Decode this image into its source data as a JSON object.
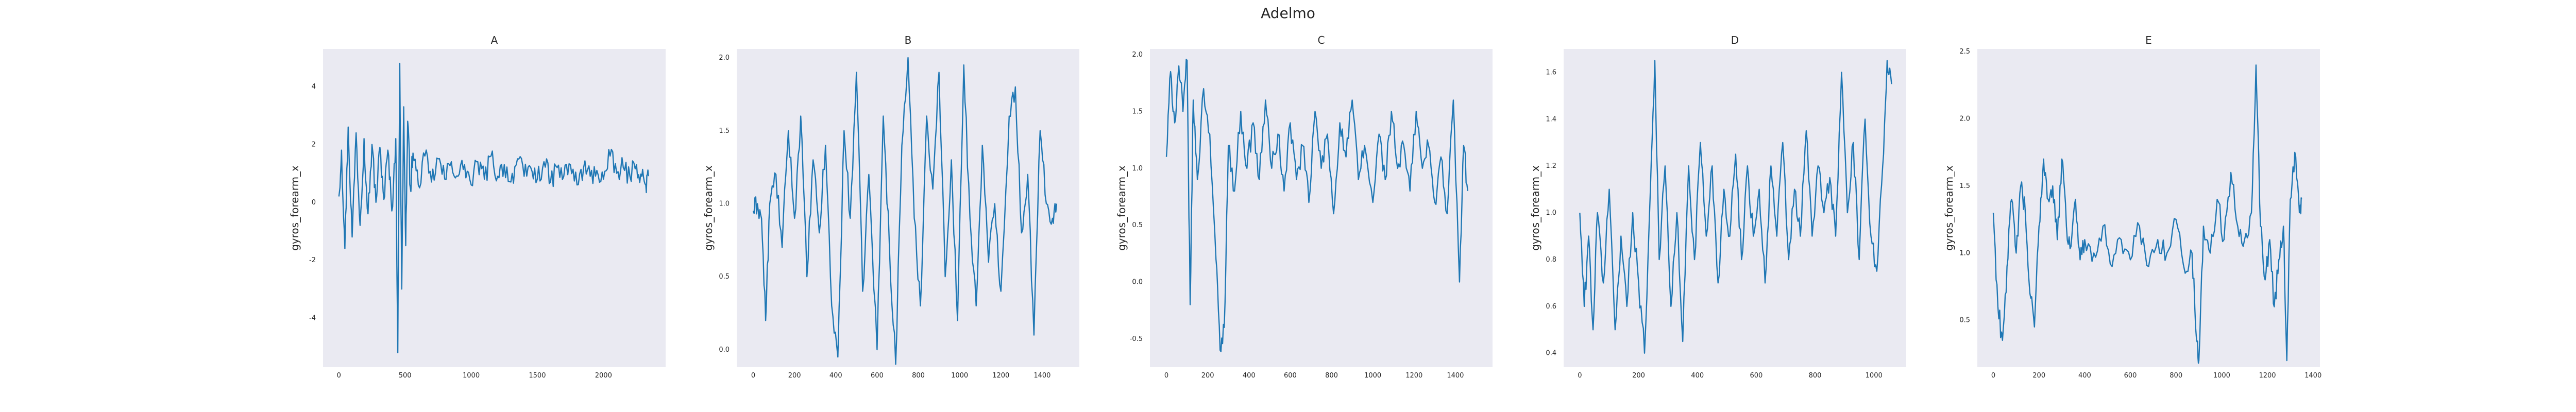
{
  "figure": {
    "title": "Adelmo"
  },
  "style": {
    "background": "#eaeaf2",
    "line_color": "#1f77b4",
    "text_color": "#262626"
  },
  "chart_data": [
    {
      "type": "line",
      "title": "A",
      "xlabel": "",
      "ylabel": "gyros_forearm_x",
      "xlim": [
        -120,
        2470
      ],
      "ylim": [
        -5.7,
        5.3
      ],
      "xticks": [
        0,
        500,
        1000,
        1500,
        2000
      ],
      "yticks": [
        -4,
        -2,
        0,
        2,
        4
      ],
      "grid": false,
      "keypoints": [
        [
          0,
          0.2
        ],
        [
          20,
          1.8
        ],
        [
          45,
          -1.6
        ],
        [
          70,
          2.6
        ],
        [
          100,
          -1.2
        ],
        [
          130,
          2.4
        ],
        [
          160,
          -0.8
        ],
        [
          190,
          2.2
        ],
        [
          220,
          -0.4
        ],
        [
          250,
          2.0
        ],
        [
          280,
          0.0
        ],
        [
          310,
          1.9
        ],
        [
          340,
          0.1
        ],
        [
          370,
          1.8
        ],
        [
          400,
          -0.3
        ],
        [
          430,
          2.2
        ],
        [
          445,
          -5.2
        ],
        [
          460,
          4.8
        ],
        [
          475,
          -3.0
        ],
        [
          490,
          3.3
        ],
        [
          505,
          -1.5
        ],
        [
          520,
          2.8
        ],
        [
          540,
          0.5
        ],
        [
          560,
          1.7
        ],
        [
          600,
          0.6
        ],
        [
          650,
          1.6
        ],
        [
          700,
          0.7
        ],
        [
          750,
          1.5
        ],
        [
          800,
          0.8
        ],
        [
          850,
          1.4
        ],
        [
          900,
          0.9
        ],
        [
          950,
          1.3
        ],
        [
          1000,
          0.6
        ],
        [
          1050,
          1.4
        ],
        [
          1100,
          0.8
        ],
        [
          1150,
          1.6
        ],
        [
          1200,
          0.9
        ],
        [
          1250,
          1.3
        ],
        [
          1300,
          0.7
        ],
        [
          1350,
          1.5
        ],
        [
          1400,
          0.9
        ],
        [
          1450,
          1.2
        ],
        [
          1500,
          0.8
        ],
        [
          1550,
          1.4
        ],
        [
          1600,
          0.7
        ],
        [
          1650,
          1.2
        ],
        [
          1700,
          0.9
        ],
        [
          1750,
          1.3
        ],
        [
          1800,
          0.6
        ],
        [
          1850,
          1.2
        ],
        [
          1900,
          0.9
        ],
        [
          1950,
          1.1
        ],
        [
          2000,
          0.8
        ],
        [
          2050,
          1.6
        ],
        [
          2100,
          1.0
        ],
        [
          2150,
          1.2
        ],
        [
          2200,
          0.9
        ],
        [
          2250,
          1.3
        ],
        [
          2290,
          0.9
        ],
        [
          2320,
          0.6
        ],
        [
          2340,
          0.9
        ]
      ]
    },
    {
      "type": "line",
      "title": "B",
      "xlabel": "",
      "ylabel": "gyros_forearm_x",
      "xlim": [
        -80,
        1580
      ],
      "ylim": [
        -0.12,
        2.06
      ],
      "xticks": [
        0,
        200,
        400,
        600,
        800,
        1000,
        1200,
        1400
      ],
      "yticks": [
        0.0,
        0.5,
        1.0,
        1.5,
        2.0
      ],
      "grid": false,
      "keypoints": [
        [
          0,
          0.95
        ],
        [
          20,
          1.0
        ],
        [
          40,
          0.9
        ],
        [
          60,
          0.2
        ],
        [
          80,
          1.0
        ],
        [
          110,
          1.2
        ],
        [
          140,
          0.7
        ],
        [
          170,
          1.5
        ],
        [
          200,
          0.9
        ],
        [
          230,
          1.6
        ],
        [
          260,
          0.5
        ],
        [
          290,
          1.3
        ],
        [
          320,
          0.8
        ],
        [
          350,
          1.4
        ],
        [
          380,
          0.3
        ],
        [
          410,
          -0.05
        ],
        [
          440,
          1.5
        ],
        [
          470,
          0.9
        ],
        [
          500,
          1.9
        ],
        [
          530,
          0.4
        ],
        [
          560,
          1.2
        ],
        [
          600,
          0.0
        ],
        [
          630,
          1.6
        ],
        [
          660,
          0.7
        ],
        [
          690,
          -0.1
        ],
        [
          720,
          1.4
        ],
        [
          750,
          2.0
        ],
        [
          780,
          0.9
        ],
        [
          810,
          0.3
        ],
        [
          840,
          1.6
        ],
        [
          870,
          1.1
        ],
        [
          900,
          1.9
        ],
        [
          930,
          0.5
        ],
        [
          960,
          1.3
        ],
        [
          990,
          0.2
        ],
        [
          1020,
          1.95
        ],
        [
          1050,
          0.9
        ],
        [
          1080,
          0.3
        ],
        [
          1110,
          1.4
        ],
        [
          1140,
          0.6
        ],
        [
          1170,
          1.0
        ],
        [
          1200,
          0.4
        ],
        [
          1240,
          1.6
        ],
        [
          1270,
          1.8
        ],
        [
          1300,
          0.8
        ],
        [
          1330,
          1.2
        ],
        [
          1360,
          0.1
        ],
        [
          1390,
          1.5
        ],
        [
          1420,
          1.0
        ],
        [
          1450,
          0.9
        ],
        [
          1470,
          1.0
        ]
      ]
    },
    {
      "type": "line",
      "title": "C",
      "xlabel": "",
      "ylabel": "gyros_forearm_x",
      "xlim": [
        -80,
        1580
      ],
      "ylim": [
        -0.75,
        2.05
      ],
      "xticks": [
        0,
        200,
        400,
        600,
        800,
        1000,
        1200,
        1400
      ],
      "yticks": [
        -0.5,
        0.0,
        0.5,
        1.0,
        1.5,
        2.0
      ],
      "grid": false,
      "keypoints": [
        [
          0,
          1.1
        ],
        [
          20,
          1.85
        ],
        [
          40,
          1.4
        ],
        [
          60,
          1.9
        ],
        [
          80,
          1.5
        ],
        [
          100,
          1.95
        ],
        [
          115,
          -0.2
        ],
        [
          130,
          1.6
        ],
        [
          150,
          0.9
        ],
        [
          180,
          1.7
        ],
        [
          210,
          1.3
        ],
        [
          240,
          0.2
        ],
        [
          260,
          -0.6
        ],
        [
          280,
          -0.4
        ],
        [
          300,
          1.2
        ],
        [
          330,
          0.8
        ],
        [
          360,
          1.5
        ],
        [
          390,
          1.0
        ],
        [
          420,
          1.4
        ],
        [
          450,
          0.9
        ],
        [
          480,
          1.6
        ],
        [
          510,
          1.0
        ],
        [
          540,
          1.3
        ],
        [
          570,
          0.8
        ],
        [
          600,
          1.4
        ],
        [
          630,
          0.9
        ],
        [
          660,
          1.2
        ],
        [
          690,
          0.7
        ],
        [
          720,
          1.5
        ],
        [
          750,
          1.0
        ],
        [
          780,
          1.3
        ],
        [
          810,
          0.6
        ],
        [
          840,
          1.4
        ],
        [
          870,
          1.1
        ],
        [
          900,
          1.6
        ],
        [
          930,
          0.9
        ],
        [
          960,
          1.2
        ],
        [
          1000,
          0.7
        ],
        [
          1030,
          1.3
        ],
        [
          1060,
          0.9
        ],
        [
          1090,
          1.5
        ],
        [
          1120,
          1.0
        ],
        [
          1150,
          1.2
        ],
        [
          1180,
          0.8
        ],
        [
          1210,
          1.5
        ],
        [
          1240,
          1.0
        ],
        [
          1270,
          1.2
        ],
        [
          1300,
          0.7
        ],
        [
          1330,
          1.1
        ],
        [
          1360,
          0.6
        ],
        [
          1390,
          1.6
        ],
        [
          1420,
          0.0
        ],
        [
          1440,
          1.2
        ],
        [
          1460,
          0.8
        ]
      ]
    },
    {
      "type": "line",
      "title": "D",
      "xlabel": "",
      "ylabel": "gyros_forearm_x",
      "xlim": [
        -55,
        1110
      ],
      "ylim": [
        0.34,
        1.7
      ],
      "xticks": [
        0,
        200,
        400,
        600,
        800,
        1000
      ],
      "yticks": [
        0.4,
        0.6,
        0.8,
        1.0,
        1.2,
        1.4,
        1.6
      ],
      "grid": false,
      "keypoints": [
        [
          0,
          1.0
        ],
        [
          15,
          0.6
        ],
        [
          30,
          0.9
        ],
        [
          45,
          0.5
        ],
        [
          60,
          1.0
        ],
        [
          80,
          0.7
        ],
        [
          100,
          1.1
        ],
        [
          120,
          0.5
        ],
        [
          140,
          0.9
        ],
        [
          160,
          0.6
        ],
        [
          180,
          1.0
        ],
        [
          200,
          0.7
        ],
        [
          220,
          0.4
        ],
        [
          240,
          1.1
        ],
        [
          255,
          1.65
        ],
        [
          270,
          0.8
        ],
        [
          290,
          1.2
        ],
        [
          310,
          0.6
        ],
        [
          330,
          1.0
        ],
        [
          350,
          0.45
        ],
        [
          370,
          1.2
        ],
        [
          390,
          0.8
        ],
        [
          410,
          1.3
        ],
        [
          430,
          0.9
        ],
        [
          450,
          1.2
        ],
        [
          470,
          0.7
        ],
        [
          490,
          1.1
        ],
        [
          510,
          0.9
        ],
        [
          530,
          1.25
        ],
        [
          550,
          0.8
        ],
        [
          570,
          1.2
        ],
        [
          590,
          0.9
        ],
        [
          610,
          1.1
        ],
        [
          630,
          0.7
        ],
        [
          650,
          1.2
        ],
        [
          670,
          0.9
        ],
        [
          690,
          1.3
        ],
        [
          710,
          0.8
        ],
        [
          730,
          1.1
        ],
        [
          750,
          0.9
        ],
        [
          770,
          1.35
        ],
        [
          790,
          0.9
        ],
        [
          810,
          1.2
        ],
        [
          830,
          1.0
        ],
        [
          850,
          1.15
        ],
        [
          870,
          0.9
        ],
        [
          890,
          1.6
        ],
        [
          910,
          1.0
        ],
        [
          930,
          1.3
        ],
        [
          950,
          0.8
        ],
        [
          970,
          1.4
        ],
        [
          990,
          0.9
        ],
        [
          1010,
          0.75
        ],
        [
          1030,
          1.2
        ],
        [
          1045,
          1.65
        ],
        [
          1060,
          1.55
        ]
      ]
    },
    {
      "type": "line",
      "title": "E",
      "xlabel": "",
      "ylabel": "gyros_forearm_x",
      "xlim": [
        -70,
        1430
      ],
      "ylim": [
        0.15,
        2.52
      ],
      "xticks": [
        0,
        200,
        400,
        600,
        800,
        1000,
        1200,
        1400
      ],
      "yticks": [
        0.5,
        1.0,
        1.5,
        2.0,
        2.5
      ],
      "grid": false,
      "keypoints": [
        [
          0,
          1.3
        ],
        [
          20,
          0.6
        ],
        [
          40,
          0.35
        ],
        [
          60,
          0.9
        ],
        [
          80,
          1.4
        ],
        [
          100,
          1.0
        ],
        [
          120,
          1.5
        ],
        [
          140,
          1.3
        ],
        [
          160,
          0.7
        ],
        [
          180,
          0.45
        ],
        [
          200,
          1.2
        ],
        [
          220,
          1.7
        ],
        [
          240,
          1.4
        ],
        [
          260,
          1.5
        ],
        [
          280,
          1.1
        ],
        [
          300,
          1.7
        ],
        [
          320,
          1.2
        ],
        [
          340,
          1.05
        ],
        [
          360,
          1.4
        ],
        [
          380,
          0.95
        ],
        [
          400,
          1.1
        ],
        [
          440,
          1.0
        ],
        [
          480,
          1.2
        ],
        [
          520,
          0.9
        ],
        [
          560,
          1.1
        ],
        [
          600,
          0.95
        ],
        [
          640,
          1.2
        ],
        [
          680,
          0.9
        ],
        [
          720,
          1.1
        ],
        [
          760,
          1.0
        ],
        [
          800,
          1.25
        ],
        [
          840,
          0.85
        ],
        [
          870,
          1.0
        ],
        [
          890,
          0.35
        ],
        [
          900,
          0.2
        ],
        [
          920,
          1.2
        ],
        [
          950,
          1.0
        ],
        [
          980,
          1.4
        ],
        [
          1010,
          1.1
        ],
        [
          1040,
          1.6
        ],
        [
          1070,
          1.2
        ],
        [
          1100,
          1.1
        ],
        [
          1130,
          1.3
        ],
        [
          1150,
          2.4
        ],
        [
          1170,
          1.2
        ],
        [
          1190,
          0.8
        ],
        [
          1210,
          1.1
        ],
        [
          1230,
          0.6
        ],
        [
          1250,
          0.95
        ],
        [
          1270,
          1.2
        ],
        [
          1285,
          0.2
        ],
        [
          1300,
          1.4
        ],
        [
          1320,
          1.75
        ],
        [
          1340,
          1.3
        ],
        [
          1350,
          1.4
        ]
      ]
    }
  ]
}
